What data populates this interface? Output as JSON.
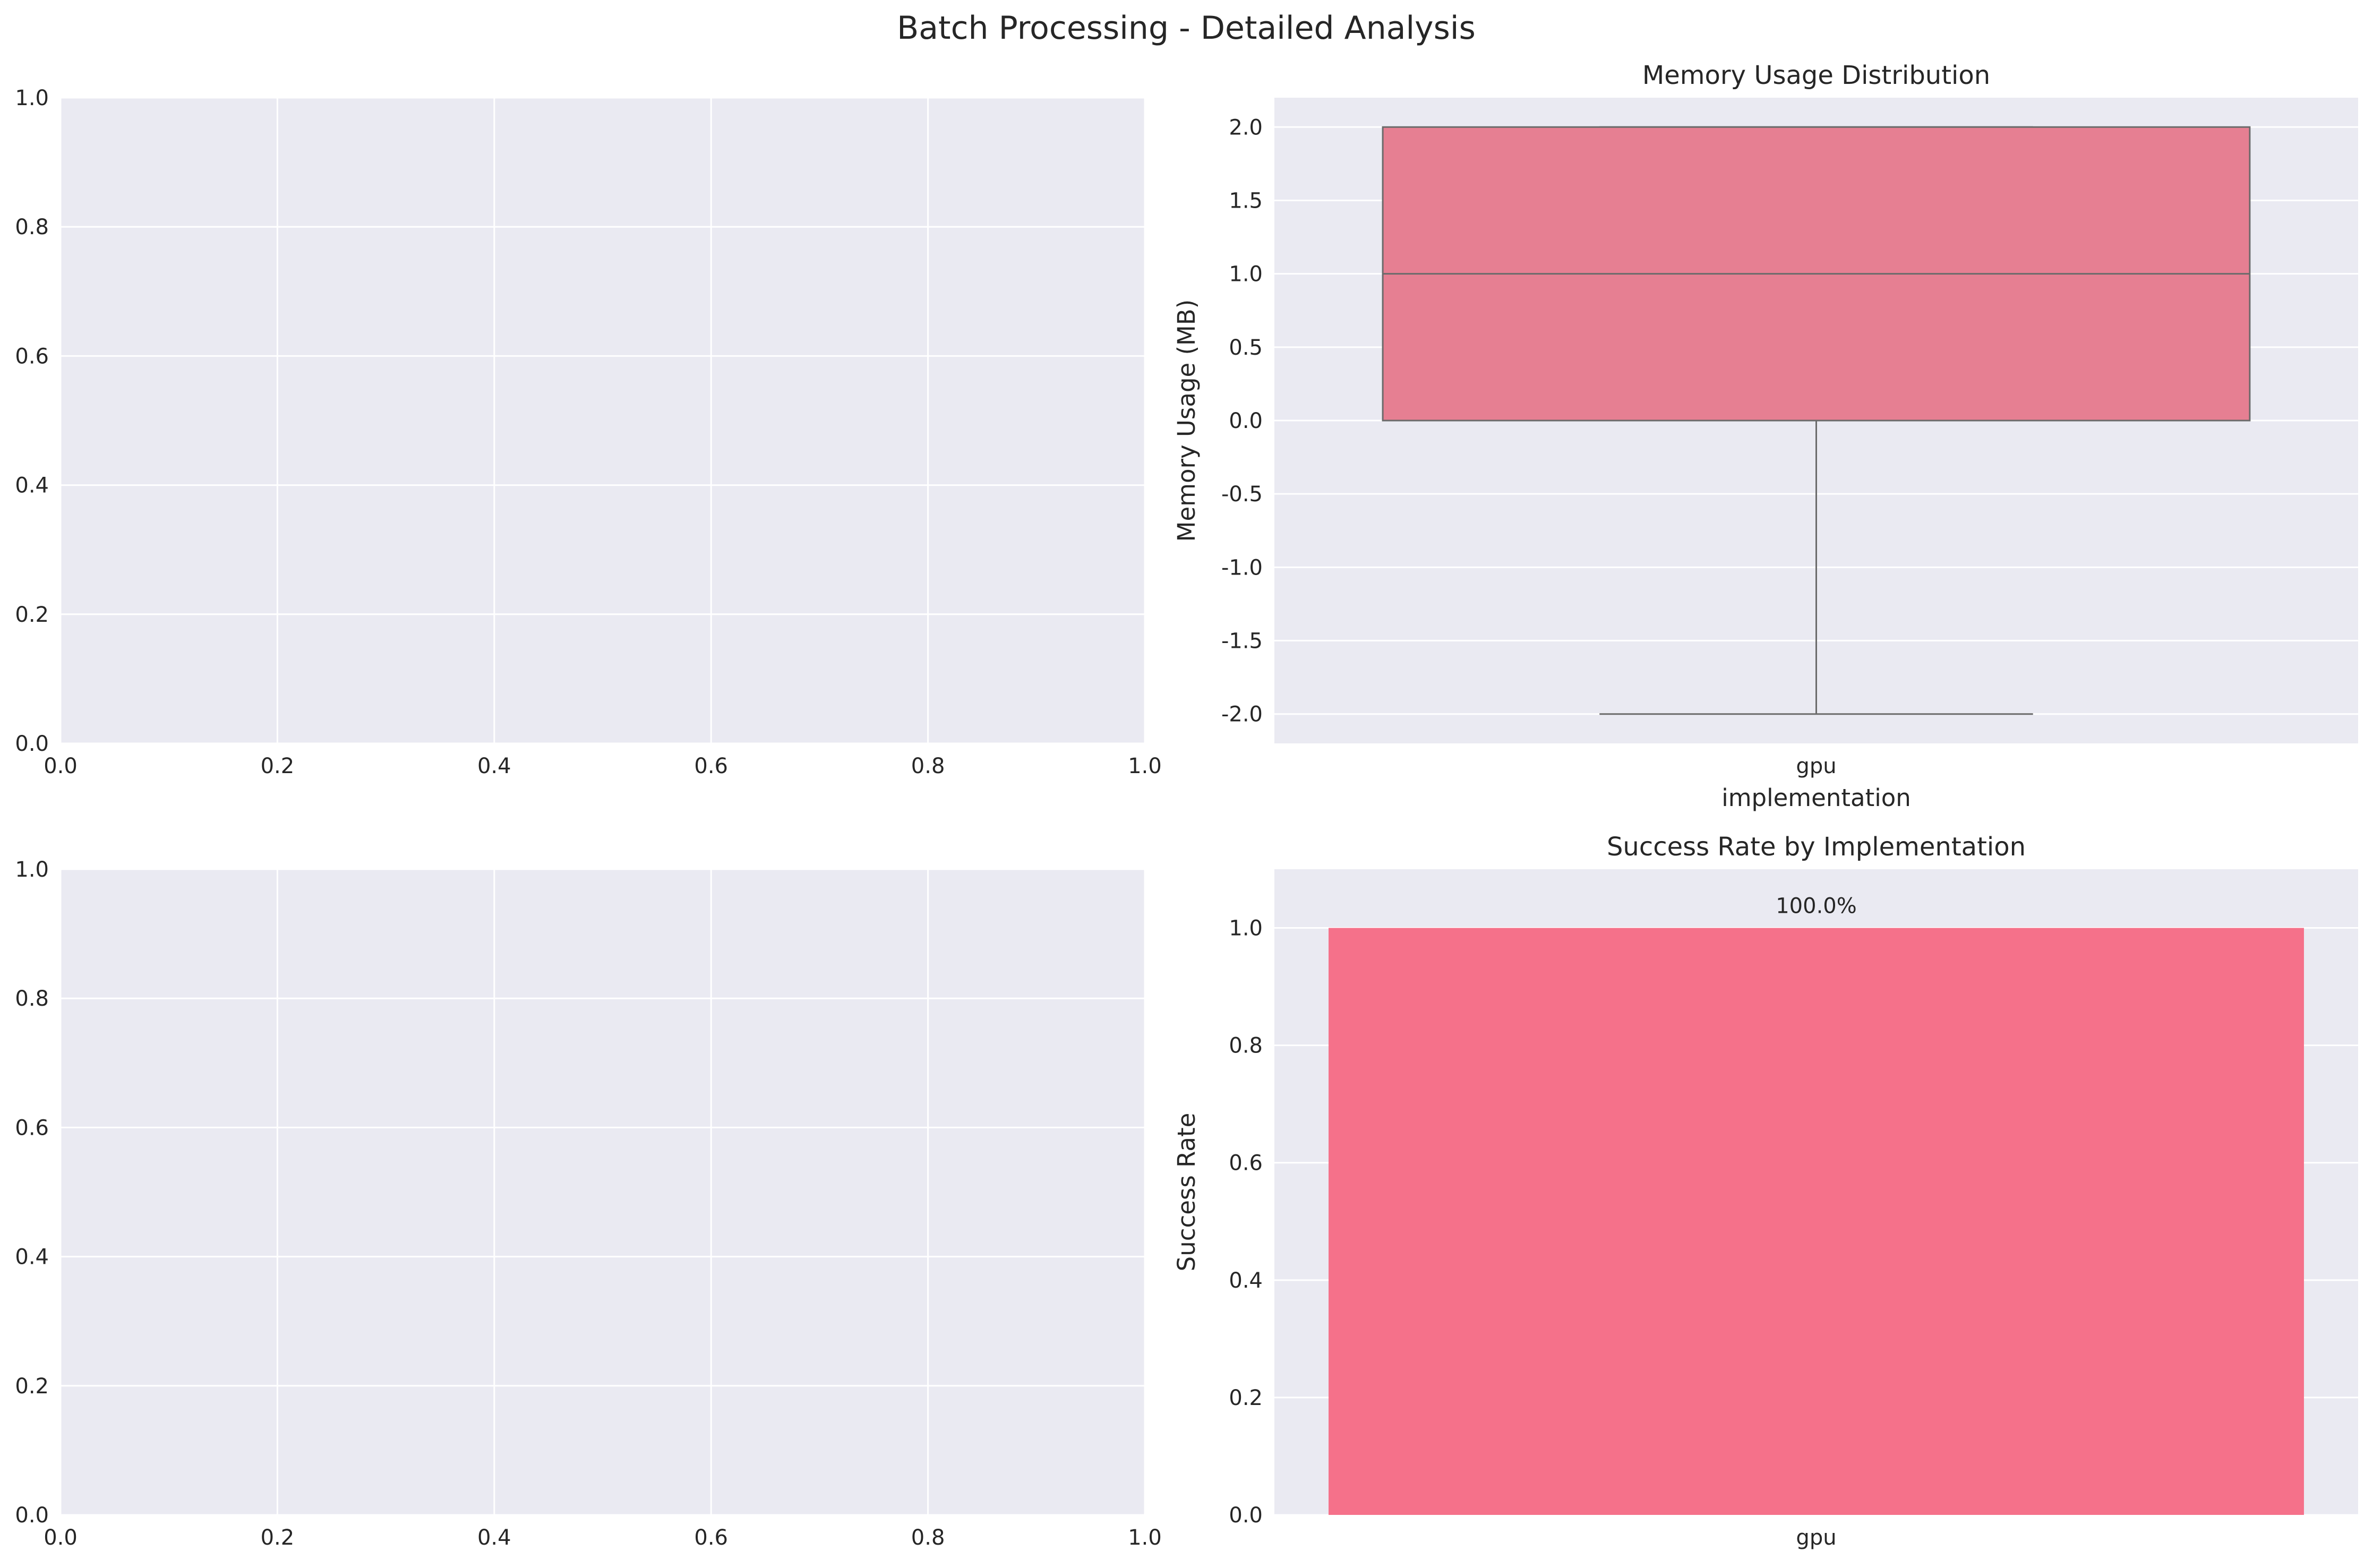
{
  "figure": {
    "suptitle": "Batch Processing - Detailed Analysis",
    "background": "#ffffff",
    "axes_facecolor": "#eaeaf2",
    "grid_color": "#ffffff",
    "text_color": "#262626"
  },
  "chart_data": [
    {
      "type": "line",
      "title": "",
      "xlabel": "",
      "ylabel": "",
      "xlim": [
        0.0,
        1.0
      ],
      "ylim": [
        0.0,
        1.0
      ],
      "xticks": [
        "0.0",
        "0.2",
        "0.4",
        "0.6",
        "0.8",
        "1.0"
      ],
      "yticks": [
        "0.0",
        "0.2",
        "0.4",
        "0.6",
        "0.8",
        "1.0"
      ],
      "series": [],
      "grid": true
    },
    {
      "type": "box",
      "title": "Memory Usage Distribution",
      "xlabel": "implementation",
      "ylabel": "Memory Usage (MB)",
      "categories": [
        "gpu"
      ],
      "ylim": [
        -2.2,
        2.2
      ],
      "yticks": [
        "-2.0",
        "-1.5",
        "-1.0",
        "-0.5",
        "0.0",
        "0.5",
        "1.0",
        "1.5",
        "2.0"
      ],
      "boxes": [
        {
          "category": "gpu",
          "whisker_low": -2.0,
          "q1": 0.0,
          "median": 1.0,
          "q3": 2.0,
          "whisker_high": 2.0
        }
      ],
      "color": "#e67f92",
      "line_color": "#6b6b6b",
      "grid": true
    },
    {
      "type": "line",
      "title": "",
      "xlabel": "",
      "ylabel": "",
      "xlim": [
        0.0,
        1.0
      ],
      "ylim": [
        0.0,
        1.0
      ],
      "xticks": [
        "0.0",
        "0.2",
        "0.4",
        "0.6",
        "0.8",
        "1.0"
      ],
      "yticks": [
        "0.0",
        "0.2",
        "0.4",
        "0.6",
        "0.8",
        "1.0"
      ],
      "series": [],
      "grid": true
    },
    {
      "type": "bar",
      "title": "Success Rate by Implementation",
      "xlabel": "",
      "ylabel": "Success Rate",
      "categories": [
        "gpu"
      ],
      "values": [
        1.0
      ],
      "value_labels": [
        "100.0%"
      ],
      "ylim": [
        0.0,
        1.1
      ],
      "yticks": [
        "0.0",
        "0.2",
        "0.4",
        "0.6",
        "0.8",
        "1.0"
      ],
      "color": "#f5718a",
      "grid": true
    }
  ]
}
